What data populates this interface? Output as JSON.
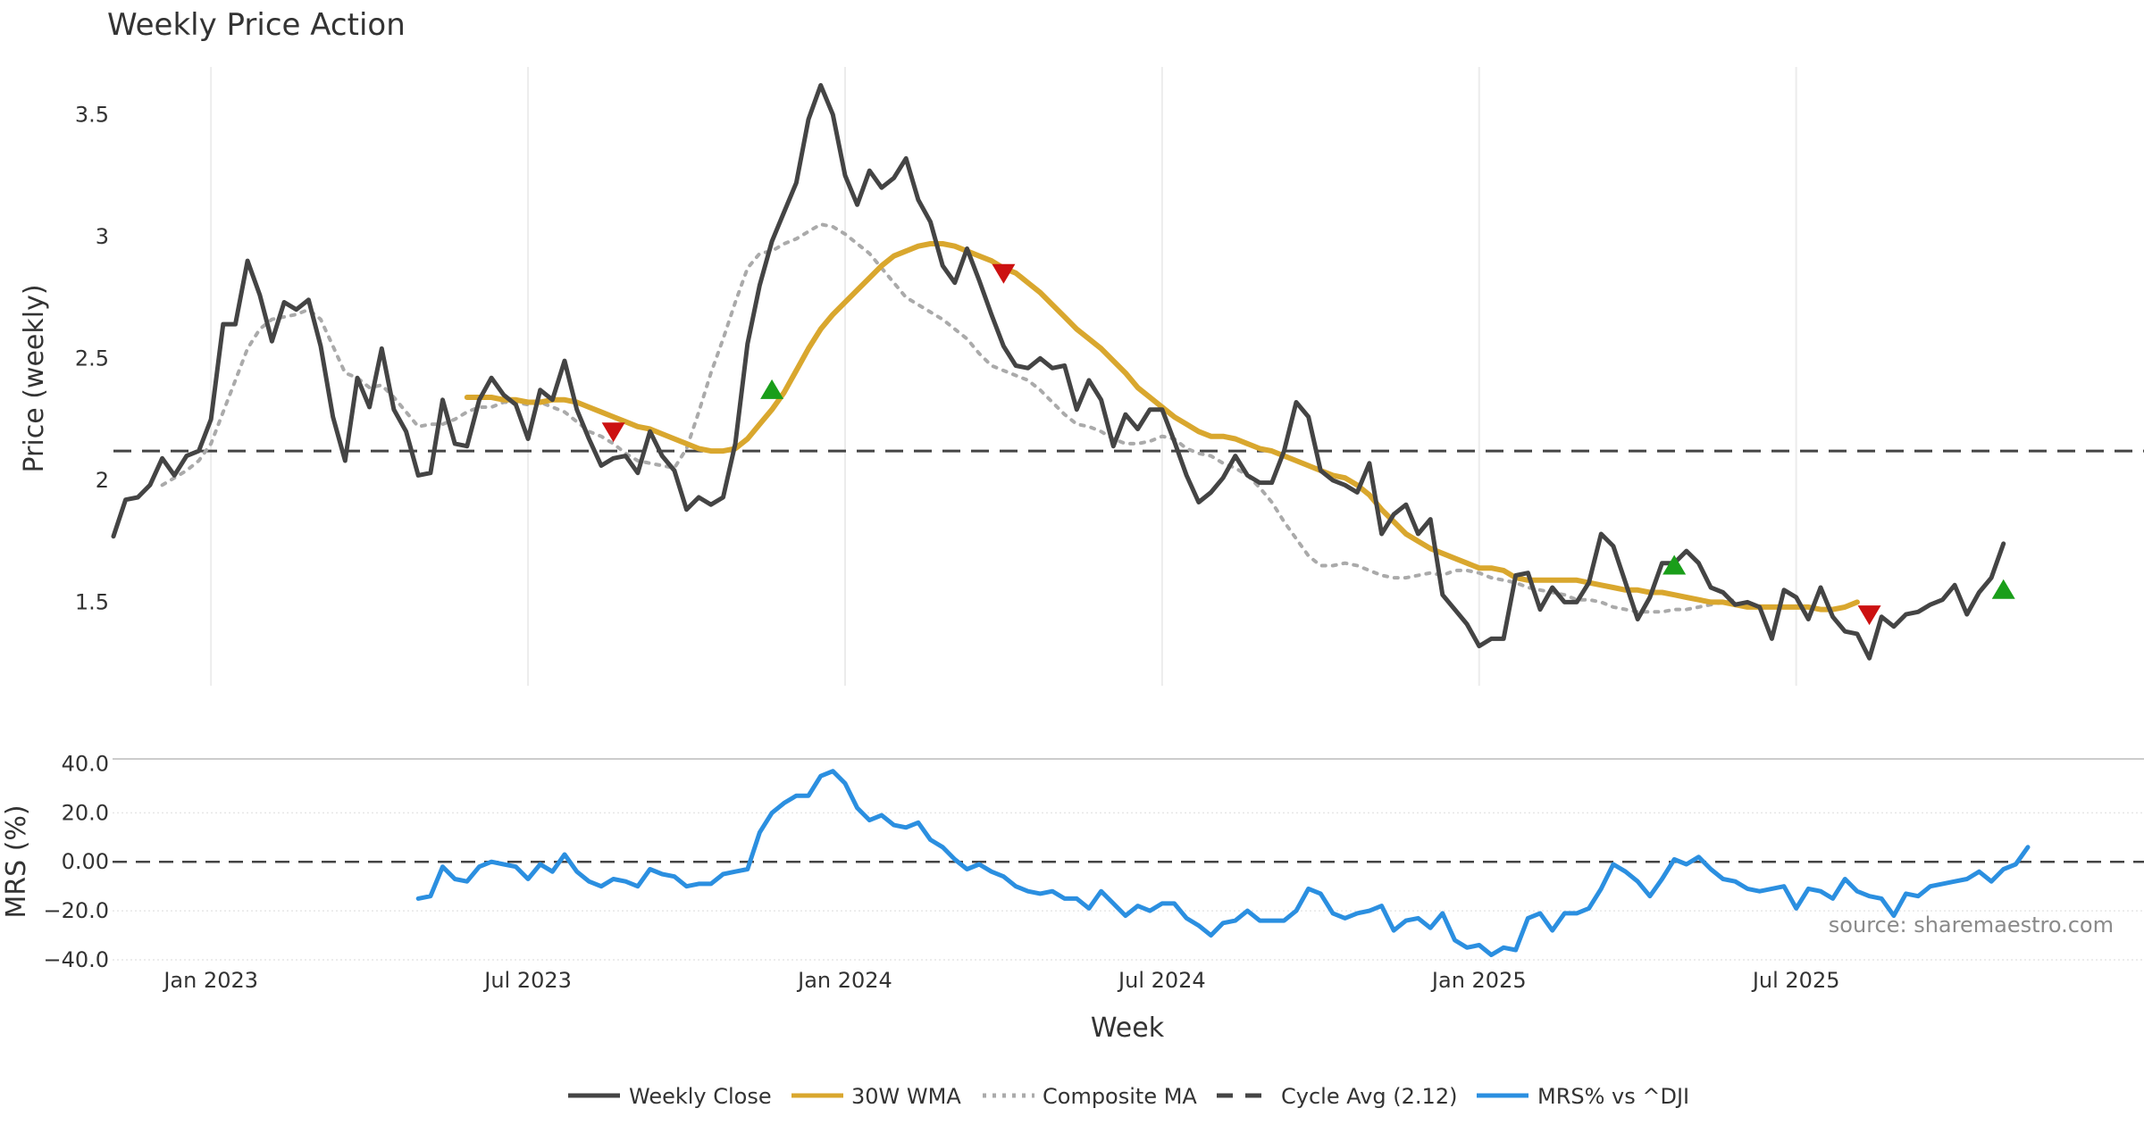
{
  "chart_data": {
    "type": "line",
    "title": "Weekly Price Action",
    "xlabel": "Week",
    "x_ticks": [
      "Jan 2023",
      "Jul 2023",
      "Jan 2024",
      "Jul 2024",
      "Jan 2025",
      "Jul 2025"
    ],
    "x_tick_week_index": [
      8,
      34,
      60,
      86,
      112,
      138
    ],
    "weeks_total": 158,
    "price_panel": {
      "ylabel": "Price (weekly)",
      "ylim": [
        1.15,
        3.75
      ],
      "y_ticks": [
        1.5,
        2,
        2.5,
        3,
        3.5
      ],
      "y_tick_labels": [
        "1.5",
        "2",
        "2.5",
        "3",
        "3.5"
      ],
      "series": [
        {
          "name": "Weekly Close",
          "color": "#444444",
          "style": "solid",
          "start_index": 0,
          "values": [
            1.77,
            1.92,
            1.93,
            1.98,
            2.09,
            2.02,
            2.1,
            2.12,
            2.25,
            2.64,
            2.64,
            2.9,
            2.76,
            2.57,
            2.73,
            2.7,
            2.74,
            2.55,
            2.26,
            2.08,
            2.42,
            2.3,
            2.54,
            2.29,
            2.2,
            2.02,
            2.03,
            2.33,
            2.15,
            2.14,
            2.33,
            2.42,
            2.35,
            2.31,
            2.17,
            2.37,
            2.33,
            2.49,
            2.29,
            2.17,
            2.06,
            2.09,
            2.1,
            2.03,
            2.2,
            2.1,
            2.04,
            1.88,
            1.93,
            1.9,
            1.93,
            2.15,
            2.56,
            2.8,
            2.98,
            3.1,
            3.22,
            3.48,
            3.62,
            3.5,
            3.25,
            3.13,
            3.27,
            3.2,
            3.24,
            3.32,
            3.15,
            3.06,
            2.88,
            2.81,
            2.95,
            2.82,
            2.68,
            2.55,
            2.47,
            2.46,
            2.5,
            2.46,
            2.47,
            2.29,
            2.41,
            2.33,
            2.14,
            2.27,
            2.21,
            2.29,
            2.29,
            2.16,
            2.02,
            1.91,
            1.95,
            2.01,
            2.1,
            2.02,
            1.99,
            1.99,
            2.12,
            2.32,
            2.26,
            2.04,
            2.0,
            1.98,
            1.95,
            2.07,
            1.78,
            1.86,
            1.9,
            1.78,
            1.84,
            1.53,
            1.47,
            1.41,
            1.32,
            1.35,
            1.35,
            1.61,
            1.62,
            1.47,
            1.56,
            1.5,
            1.5,
            1.58,
            1.78,
            1.73,
            1.58,
            1.43,
            1.52,
            1.66,
            1.66,
            1.71,
            1.66,
            1.56,
            1.54,
            1.49,
            1.5,
            1.48,
            1.35,
            1.55,
            1.52,
            1.43,
            1.56,
            1.44,
            1.38,
            1.37,
            1.27,
            1.44,
            1.4,
            1.45,
            1.46,
            1.49,
            1.51,
            1.57,
            1.45,
            1.54,
            1.6,
            1.74
          ]
        },
        {
          "name": "30W WMA",
          "color": "#d9a72e",
          "style": "solid",
          "start_index": 29,
          "values": [
            2.34,
            2.34,
            2.34,
            2.33,
            2.33,
            2.32,
            2.32,
            2.33,
            2.33,
            2.32,
            2.3,
            2.28,
            2.26,
            2.24,
            2.22,
            2.21,
            2.19,
            2.17,
            2.15,
            2.13,
            2.12,
            2.12,
            2.13,
            2.17,
            2.23,
            2.29,
            2.36,
            2.45,
            2.54,
            2.62,
            2.68,
            2.73,
            2.78,
            2.83,
            2.88,
            2.92,
            2.94,
            2.96,
            2.97,
            2.97,
            2.96,
            2.94,
            2.92,
            2.9,
            2.87,
            2.85,
            2.81,
            2.77,
            2.72,
            2.67,
            2.62,
            2.58,
            2.54,
            2.49,
            2.44,
            2.38,
            2.34,
            2.3,
            2.26,
            2.23,
            2.2,
            2.18,
            2.18,
            2.17,
            2.15,
            2.13,
            2.12,
            2.1,
            2.08,
            2.06,
            2.04,
            2.02,
            2.01,
            1.98,
            1.94,
            1.88,
            1.83,
            1.78,
            1.75,
            1.72,
            1.7,
            1.68,
            1.66,
            1.64,
            1.64,
            1.63,
            1.6,
            1.59,
            1.59,
            1.59,
            1.59,
            1.59,
            1.58,
            1.57,
            1.56,
            1.55,
            1.55,
            1.54,
            1.54,
            1.53,
            1.52,
            1.51,
            1.5,
            1.5,
            1.49,
            1.48,
            1.48,
            1.48,
            1.48,
            1.48,
            1.48,
            1.47,
            1.47,
            1.48,
            1.5
          ]
        },
        {
          "name": "Composite MA",
          "color": "#aaaaaa",
          "style": "dotted",
          "start_index": 4,
          "values": [
            1.98,
            2.01,
            2.04,
            2.08,
            2.15,
            2.28,
            2.41,
            2.54,
            2.62,
            2.66,
            2.67,
            2.68,
            2.7,
            2.66,
            2.55,
            2.44,
            2.42,
            2.38,
            2.39,
            2.34,
            2.28,
            2.22,
            2.23,
            2.23,
            2.25,
            2.28,
            2.3,
            2.3,
            2.32,
            2.32,
            2.31,
            2.32,
            2.3,
            2.28,
            2.24,
            2.2,
            2.18,
            2.15,
            2.11,
            2.08,
            2.07,
            2.06,
            2.05,
            2.13,
            2.28,
            2.44,
            2.58,
            2.73,
            2.87,
            2.93,
            2.94,
            2.97,
            2.99,
            3.02,
            3.05,
            3.04,
            3.01,
            2.97,
            2.93,
            2.87,
            2.81,
            2.75,
            2.72,
            2.69,
            2.66,
            2.62,
            2.58,
            2.52,
            2.47,
            2.45,
            2.43,
            2.41,
            2.37,
            2.32,
            2.27,
            2.23,
            2.22,
            2.2,
            2.17,
            2.15,
            2.15,
            2.16,
            2.18,
            2.17,
            2.13,
            2.11,
            2.1,
            2.07,
            2.05,
            2.02,
            1.97,
            1.91,
            1.83,
            1.76,
            1.69,
            1.65,
            1.65,
            1.66,
            1.65,
            1.63,
            1.61,
            1.6,
            1.6,
            1.61,
            1.62,
            1.61,
            1.63,
            1.63,
            1.62,
            1.6,
            1.59,
            1.58,
            1.56,
            1.55,
            1.54,
            1.53,
            1.51,
            1.51,
            1.5,
            1.48,
            1.47,
            1.46,
            1.46,
            1.46,
            1.47,
            1.47,
            1.48,
            1.49,
            1.5,
            1.51
          ]
        }
      ],
      "reference_line": {
        "name": "Cycle Avg (2.12)",
        "value": 2.12,
        "color": "#444444",
        "style": "dashed"
      },
      "buy_markers": [
        {
          "week": 54,
          "price": 2.37
        },
        {
          "week": 128,
          "price": 1.65
        },
        {
          "week": 155,
          "price": 1.55
        }
      ],
      "sell_markers": [
        {
          "week": 41,
          "price": 2.2
        },
        {
          "week": 73,
          "price": 2.85
        },
        {
          "week": 144,
          "price": 1.45
        }
      ],
      "buy_color": "#1a9e1a",
      "sell_color": "#cc1111"
    },
    "mrs_panel": {
      "ylabel": "MRS (%)",
      "ylim": [
        -40,
        42
      ],
      "y_ticks": [
        40,
        20,
        0,
        -20,
        -40
      ],
      "y_tick_labels": [
        "40.0",
        "20.0",
        "0.00",
        "−20.0",
        "−40.0"
      ],
      "series": {
        "name": "MRS% vs ^DJI",
        "color": "#2b8fe0",
        "start_index": 25,
        "values": [
          -15,
          -14,
          -2,
          -7,
          -8,
          -2,
          0,
          -1,
          -2,
          -7,
          -1,
          -4,
          3,
          -4,
          -8,
          -10,
          -7,
          -8,
          -10,
          -3,
          -5,
          -6,
          -10,
          -9,
          -9,
          -5,
          -4,
          -3,
          12,
          20,
          24,
          27,
          27,
          35,
          37,
          32,
          22,
          17,
          19,
          15,
          14,
          16,
          9,
          6,
          1,
          -3,
          -1,
          -4,
          -6,
          -10,
          -12,
          -13,
          -12,
          -15,
          -15,
          -19,
          -12,
          -17,
          -22,
          -18,
          -20,
          -17,
          -17,
          -23,
          -26,
          -30,
          -25,
          -24,
          -20,
          -24,
          -24,
          -24,
          -20,
          -11,
          -13,
          -21,
          -23,
          -21,
          -20,
          -18,
          -28,
          -24,
          -23,
          -27,
          -21,
          -32,
          -35,
          -34,
          -38,
          -35,
          -36,
          -23,
          -21,
          -28,
          -21,
          -21,
          -19,
          -11,
          -1,
          -4,
          -8,
          -14,
          -7,
          1,
          -1,
          2,
          -3,
          -7,
          -8,
          -11,
          -12,
          -11,
          -10,
          -19,
          -11,
          -12,
          -15,
          -7,
          -12,
          -14,
          -15,
          -22,
          -13,
          -14,
          -10,
          -9,
          -8,
          -7,
          -4,
          -8,
          -3,
          -1,
          6
        ]
      },
      "reference_line": {
        "value": 0,
        "style": "dashed",
        "color": "#444444"
      }
    },
    "legend": [
      {
        "label": "Weekly Close",
        "color": "#444444",
        "style": "solid"
      },
      {
        "label": "30W WMA",
        "color": "#d9a72e",
        "style": "solid"
      },
      {
        "label": "Composite MA",
        "color": "#aaaaaa",
        "style": "dotted"
      },
      {
        "label": "Cycle Avg (2.12)",
        "color": "#444444",
        "style": "dashed"
      },
      {
        "label": "MRS% vs ^DJI",
        "color": "#2b8fe0",
        "style": "solid"
      }
    ],
    "legend_position": "bottom-center",
    "source_note": "source: sharemaestro.com"
  }
}
